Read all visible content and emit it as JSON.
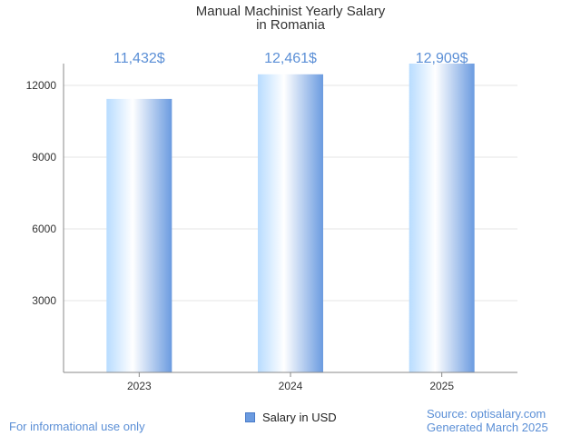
{
  "chart_data": {
    "type": "bar",
    "title_line1": "Manual Machinist Yearly Salary",
    "title_line2": "in Romania",
    "categories": [
      "2023",
      "2024",
      "2025"
    ],
    "values": [
      11432,
      12461,
      12909
    ],
    "value_labels": [
      "11,432$",
      "12,461$",
      "12,909$"
    ],
    "y_ticks": [
      3000,
      6000,
      9000,
      12000
    ],
    "ylim": [
      0,
      12909
    ],
    "legend": "Salary in USD",
    "grid": true
  },
  "footer": {
    "left": "For informational use only",
    "source": "Source: optisalary.com",
    "generated": "Generated March 2025"
  },
  "colors": {
    "bar_light": "#ffffff",
    "bar_mid": "#b8dcff",
    "bar_dark": "#6b9be0",
    "label": "#5b8fd6",
    "grid": "#e6e6e6",
    "axis": "#888888"
  }
}
